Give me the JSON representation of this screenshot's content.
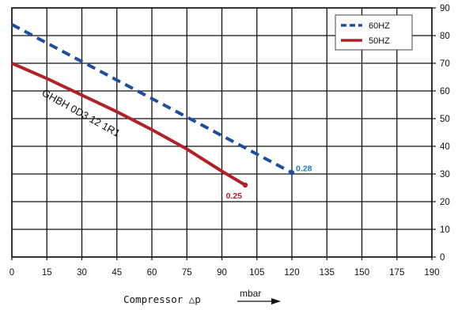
{
  "chart_data": {
    "type": "line",
    "xlabel": "Compressor △p",
    "xunit": "mbar",
    "xlim": [
      0,
      190
    ],
    "ylim": [
      0,
      90
    ],
    "xticks": [
      0,
      15,
      30,
      45,
      60,
      75,
      90,
      105,
      120,
      135,
      150,
      175,
      190
    ],
    "yticks": [
      0,
      10,
      20,
      30,
      40,
      50,
      60,
      70,
      80,
      90
    ],
    "y_axis_side": "right",
    "grid": true,
    "legend_position": "top-right",
    "curve_label": "GHBH 0D3 12 1R1",
    "series": [
      {
        "name": "60HZ",
        "style": "dashed",
        "color": "#1f4e9c",
        "x": [
          0,
          120
        ],
        "y": [
          84,
          30.5
        ],
        "end_label": "0.28",
        "end_label_color": "#1a7bc4"
      },
      {
        "name": "50HZ",
        "style": "solid",
        "color": "#b0222a",
        "x": [
          0,
          15,
          30,
          45,
          60,
          75,
          90,
          100
        ],
        "y": [
          70,
          64.5,
          58.5,
          52.5,
          46,
          39,
          31,
          26
        ],
        "end_label": "0.25",
        "end_label_color": "#b0222a"
      }
    ]
  }
}
